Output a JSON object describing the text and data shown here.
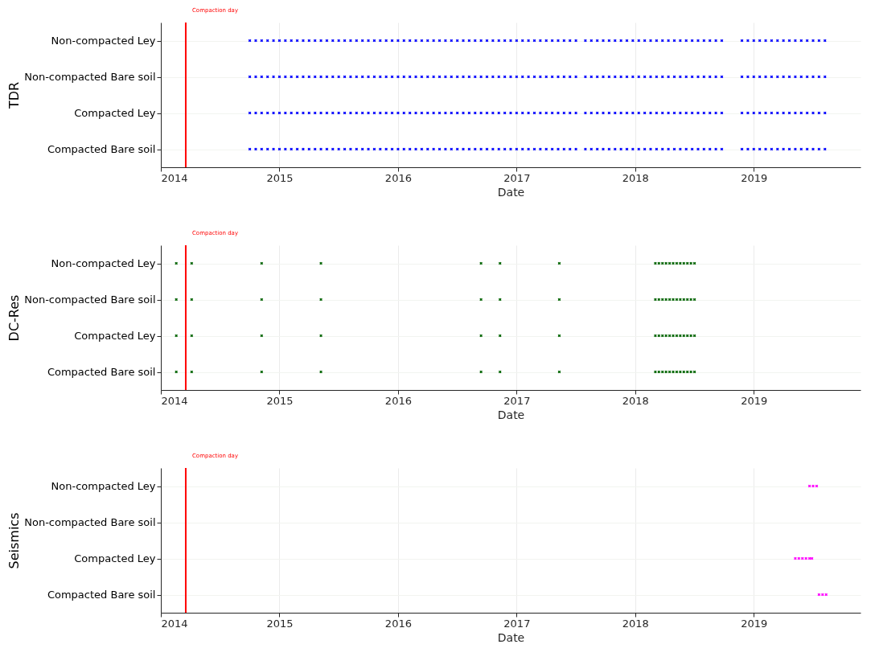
{
  "chart_data": [
    {
      "type": "scatter",
      "orientation": "horizontal",
      "xlabel": "Date",
      "ylabel": "TDR",
      "marker": "cross",
      "grid": true,
      "xlim": [
        2014,
        2019.9
      ],
      "xticks": [
        2014,
        2015,
        2016,
        2017,
        2018,
        2019
      ],
      "categories": [
        "Non-compacted Ley",
        "Non-compacted Bare soil",
        "Compacted Ley",
        "Compacted Bare soil"
      ],
      "ref_lines": [
        {
          "axis": "x",
          "value": 2014.21,
          "label": "Compaction day",
          "color": "#ff0000"
        }
      ],
      "series": [
        {
          "color": "#0000ff",
          "values": [
            2014.75,
            2014.75,
            2014.75,
            2014.75
          ]
        },
        {
          "color": "#0000ff",
          "values": [
            2014.8,
            2014.8,
            2014.8,
            2014.8
          ]
        },
        {
          "color": "#0000ff",
          "values": [
            2014.85,
            2014.85,
            2014.85,
            2014.85
          ]
        },
        {
          "color": "#0000ff",
          "values": [
            2014.9,
            2014.9,
            2014.9,
            2014.9
          ]
        },
        {
          "color": "#0000ff",
          "values": [
            2014.95,
            2014.95,
            2014.95,
            2014.95
          ]
        },
        {
          "color": "#0000ff",
          "values": [
            2015.0,
            2015.0,
            2015.0,
            2015.0
          ]
        },
        {
          "color": "#0000ff",
          "values": [
            2015.05,
            2015.05,
            2015.05,
            2015.05
          ]
        },
        {
          "color": "#0000ff",
          "values": [
            2015.1,
            2015.1,
            2015.1,
            2015.1
          ]
        },
        {
          "color": "#0000ff",
          "values": [
            2015.15,
            2015.15,
            2015.15,
            2015.15
          ]
        },
        {
          "color": "#0000ff",
          "values": [
            2015.2,
            2015.2,
            2015.2,
            2015.2
          ]
        },
        {
          "color": "#0000ff",
          "values": [
            2015.25,
            2015.25,
            2015.25,
            2015.25
          ]
        },
        {
          "color": "#0000ff",
          "values": [
            2015.3,
            2015.3,
            2015.3,
            2015.3
          ]
        },
        {
          "color": "#0000ff",
          "values": [
            2015.35,
            2015.35,
            2015.35,
            2015.35
          ]
        },
        {
          "color": "#0000ff",
          "values": [
            2015.4,
            2015.4,
            2015.4,
            2015.4
          ]
        },
        {
          "color": "#0000ff",
          "values": [
            2015.45,
            2015.45,
            2015.45,
            2015.45
          ]
        },
        {
          "color": "#0000ff",
          "values": [
            2015.5,
            2015.5,
            2015.5,
            2015.5
          ]
        },
        {
          "color": "#0000ff",
          "values": [
            2015.55,
            2015.55,
            2015.55,
            2015.55
          ]
        },
        {
          "color": "#0000ff",
          "values": [
            2015.6,
            2015.6,
            2015.6,
            2015.6
          ]
        },
        {
          "color": "#0000ff",
          "values": [
            2015.65,
            2015.65,
            2015.65,
            2015.65
          ]
        },
        {
          "color": "#0000ff",
          "values": [
            2015.7,
            2015.7,
            2015.7,
            2015.7
          ]
        },
        {
          "color": "#0000ff",
          "values": [
            2015.75,
            2015.75,
            2015.75,
            2015.75
          ]
        },
        {
          "color": "#0000ff",
          "values": [
            2015.8,
            2015.8,
            2015.8,
            2015.8
          ]
        },
        {
          "color": "#0000ff",
          "values": [
            2015.85,
            2015.85,
            2015.85,
            2015.85
          ]
        },
        {
          "color": "#0000ff",
          "values": [
            2015.9,
            2015.9,
            2015.9,
            2015.9
          ]
        },
        {
          "color": "#0000ff",
          "values": [
            2015.95,
            2015.95,
            2015.95,
            2015.95
          ]
        },
        {
          "color": "#0000ff",
          "values": [
            2016.0,
            2016.0,
            2016.0,
            2016.0
          ]
        },
        {
          "color": "#0000ff",
          "values": [
            2016.05,
            2016.05,
            2016.05,
            2016.05
          ]
        },
        {
          "color": "#0000ff",
          "values": [
            2016.1,
            2016.1,
            2016.1,
            2016.1
          ]
        },
        {
          "color": "#0000ff",
          "values": [
            2016.15,
            2016.15,
            2016.15,
            2016.15
          ]
        },
        {
          "color": "#0000ff",
          "values": [
            2016.2,
            2016.2,
            2016.2,
            2016.2
          ]
        },
        {
          "color": "#0000ff",
          "values": [
            2016.25,
            2016.25,
            2016.25,
            2016.25
          ]
        },
        {
          "color": "#0000ff",
          "values": [
            2016.3,
            2016.3,
            2016.3,
            2016.3
          ]
        },
        {
          "color": "#0000ff",
          "values": [
            2016.35,
            2016.35,
            2016.35,
            2016.35
          ]
        },
        {
          "color": "#0000ff",
          "values": [
            2016.4,
            2016.4,
            2016.4,
            2016.4
          ]
        },
        {
          "color": "#0000ff",
          "values": [
            2016.45,
            2016.45,
            2016.45,
            2016.45
          ]
        },
        {
          "color": "#0000ff",
          "values": [
            2016.5,
            2016.5,
            2016.5,
            2016.5
          ]
        },
        {
          "color": "#0000ff",
          "values": [
            2016.55,
            2016.55,
            2016.55,
            2016.55
          ]
        },
        {
          "color": "#0000ff",
          "values": [
            2016.6,
            2016.6,
            2016.6,
            2016.6
          ]
        },
        {
          "color": "#0000ff",
          "values": [
            2016.65,
            2016.65,
            2016.65,
            2016.65
          ]
        },
        {
          "color": "#0000ff",
          "values": [
            2016.7,
            2016.7,
            2016.7,
            2016.7
          ]
        },
        {
          "color": "#0000ff",
          "values": [
            2016.75,
            2016.75,
            2016.75,
            2016.75
          ]
        },
        {
          "color": "#0000ff",
          "values": [
            2016.8,
            2016.8,
            2016.8,
            2016.8
          ]
        },
        {
          "color": "#0000ff",
          "values": [
            2016.85,
            2016.85,
            2016.85,
            2016.85
          ]
        },
        {
          "color": "#0000ff",
          "values": [
            2016.9,
            2016.9,
            2016.9,
            2016.9
          ]
        },
        {
          "color": "#0000ff",
          "values": [
            2016.95,
            2016.95,
            2016.95,
            2016.95
          ]
        },
        {
          "color": "#0000ff",
          "values": [
            2017.0,
            2017.0,
            2017.0,
            2017.0
          ]
        },
        {
          "color": "#0000ff",
          "values": [
            2017.05,
            2017.05,
            2017.05,
            2017.05
          ]
        },
        {
          "color": "#0000ff",
          "values": [
            2017.1,
            2017.1,
            2017.1,
            2017.1
          ]
        },
        {
          "color": "#0000ff",
          "values": [
            2017.15,
            2017.15,
            2017.15,
            2017.15
          ]
        },
        {
          "color": "#0000ff",
          "values": [
            2017.2,
            2017.2,
            2017.2,
            2017.2
          ]
        },
        {
          "color": "#0000ff",
          "values": [
            2017.25,
            2017.25,
            2017.25,
            2017.25
          ]
        },
        {
          "color": "#0000ff",
          "values": [
            2017.3,
            2017.3,
            2017.3,
            2017.3
          ]
        },
        {
          "color": "#0000ff",
          "values": [
            2017.35,
            2017.35,
            2017.35,
            2017.35
          ]
        },
        {
          "color": "#0000ff",
          "values": [
            2017.4,
            2017.4,
            2017.4,
            2017.4
          ]
        },
        {
          "color": "#0000ff",
          "values": [
            2017.45,
            2017.45,
            2017.45,
            2017.45
          ]
        },
        {
          "color": "#0000ff",
          "values": [
            2017.5,
            2017.5,
            2017.5,
            2017.5
          ]
        },
        {
          "color": "#0000ff",
          "values": [
            2017.58,
            2017.58,
            2017.58,
            2017.58
          ]
        },
        {
          "color": "#0000ff",
          "values": [
            2017.63,
            2017.63,
            2017.63,
            2017.63
          ]
        },
        {
          "color": "#0000ff",
          "values": [
            2017.68,
            2017.68,
            2017.68,
            2017.68
          ]
        },
        {
          "color": "#0000ff",
          "values": [
            2017.73,
            2017.73,
            2017.73,
            2017.73
          ]
        },
        {
          "color": "#0000ff",
          "values": [
            2017.78,
            2017.78,
            2017.78,
            2017.78
          ]
        },
        {
          "color": "#0000ff",
          "values": [
            2017.83,
            2017.83,
            2017.83,
            2017.83
          ]
        },
        {
          "color": "#0000ff",
          "values": [
            2017.88,
            2017.88,
            2017.88,
            2017.88
          ]
        },
        {
          "color": "#0000ff",
          "values": [
            2017.93,
            2017.93,
            2017.93,
            2017.93
          ]
        },
        {
          "color": "#0000ff",
          "values": [
            2017.98,
            2017.98,
            2017.98,
            2017.98
          ]
        },
        {
          "color": "#0000ff",
          "values": [
            2018.03,
            2018.03,
            2018.03,
            2018.03
          ]
        },
        {
          "color": "#0000ff",
          "values": [
            2018.08,
            2018.08,
            2018.08,
            2018.08
          ]
        },
        {
          "color": "#0000ff",
          "values": [
            2018.13,
            2018.13,
            2018.13,
            2018.13
          ]
        },
        {
          "color": "#0000ff",
          "values": [
            2018.18,
            2018.18,
            2018.18,
            2018.18
          ]
        },
        {
          "color": "#0000ff",
          "values": [
            2018.23,
            2018.23,
            2018.23,
            2018.23
          ]
        },
        {
          "color": "#0000ff",
          "values": [
            2018.28,
            2018.28,
            2018.28,
            2018.28
          ]
        },
        {
          "color": "#0000ff",
          "values": [
            2018.33,
            2018.33,
            2018.33,
            2018.33
          ]
        },
        {
          "color": "#0000ff",
          "values": [
            2018.38,
            2018.38,
            2018.38,
            2018.38
          ]
        },
        {
          "color": "#0000ff",
          "values": [
            2018.43,
            2018.43,
            2018.43,
            2018.43
          ]
        },
        {
          "color": "#0000ff",
          "values": [
            2018.48,
            2018.48,
            2018.48,
            2018.48
          ]
        },
        {
          "color": "#0000ff",
          "values": [
            2018.53,
            2018.53,
            2018.53,
            2018.53
          ]
        },
        {
          "color": "#0000ff",
          "values": [
            2018.58,
            2018.58,
            2018.58,
            2018.58
          ]
        },
        {
          "color": "#0000ff",
          "values": [
            2018.63,
            2018.63,
            2018.63,
            2018.63
          ]
        },
        {
          "color": "#0000ff",
          "values": [
            2018.68,
            2018.68,
            2018.68,
            2018.68
          ]
        },
        {
          "color": "#0000ff",
          "values": [
            2018.73,
            2018.73,
            2018.73,
            2018.73
          ]
        },
        {
          "color": "#0000ff",
          "values": [
            2018.9,
            2018.9,
            2018.9,
            2018.9
          ]
        },
        {
          "color": "#0000ff",
          "values": [
            2018.95,
            2018.95,
            2018.95,
            2018.95
          ]
        },
        {
          "color": "#0000ff",
          "values": [
            2019.0,
            2019.0,
            2019.0,
            2019.0
          ]
        },
        {
          "color": "#0000ff",
          "values": [
            2019.05,
            2019.05,
            2019.05,
            2019.05
          ]
        },
        {
          "color": "#0000ff",
          "values": [
            2019.1,
            2019.1,
            2019.1,
            2019.1
          ]
        },
        {
          "color": "#0000ff",
          "values": [
            2019.15,
            2019.15,
            2019.15,
            2019.15
          ]
        },
        {
          "color": "#0000ff",
          "values": [
            2019.2,
            2019.2,
            2019.2,
            2019.2
          ]
        },
        {
          "color": "#0000ff",
          "values": [
            2019.25,
            2019.25,
            2019.25,
            2019.25
          ]
        },
        {
          "color": "#0000ff",
          "values": [
            2019.3,
            2019.3,
            2019.3,
            2019.3
          ]
        },
        {
          "color": "#0000ff",
          "values": [
            2019.35,
            2019.35,
            2019.35,
            2019.35
          ]
        },
        {
          "color": "#0000ff",
          "values": [
            2019.4,
            2019.4,
            2019.4,
            2019.4
          ]
        },
        {
          "color": "#0000ff",
          "values": [
            2019.45,
            2019.45,
            2019.45,
            2019.45
          ]
        },
        {
          "color": "#0000ff",
          "values": [
            2019.5,
            2019.5,
            2019.5,
            2019.5
          ]
        },
        {
          "color": "#0000ff",
          "values": [
            2019.55,
            2019.55,
            2019.55,
            2019.55
          ]
        },
        {
          "color": "#0000ff",
          "values": [
            2019.6,
            2019.6,
            2019.6,
            2019.6
          ]
        }
      ]
    },
    {
      "type": "scatter",
      "orientation": "horizontal",
      "xlabel": "Date",
      "ylabel": "DC-Res",
      "marker": "cross",
      "grid": true,
      "xlim": [
        2014,
        2019.9
      ],
      "xticks": [
        2014,
        2015,
        2016,
        2017,
        2018,
        2019
      ],
      "categories": [
        "Non-compacted Ley",
        "Non-compacted Bare soil",
        "Compacted Ley",
        "Compacted Bare soil"
      ],
      "ref_lines": [
        {
          "axis": "x",
          "value": 2014.21,
          "label": "Compaction day",
          "color": "#ff0000"
        }
      ],
      "series": [
        {
          "color": "#006400",
          "values": [
            2014.13,
            2014.13,
            2014.13,
            2014.13
          ]
        },
        {
          "color": "#006400",
          "values": [
            2014.26,
            2014.26,
            2014.26,
            2014.26
          ]
        },
        {
          "color": "#006400",
          "values": [
            2014.85,
            2014.85,
            2014.85,
            2014.85
          ]
        },
        {
          "color": "#006400",
          "values": [
            2015.35,
            2015.35,
            2015.35,
            2015.35
          ]
        },
        {
          "color": "#006400",
          "values": [
            2016.7,
            2016.7,
            2016.7,
            2016.7
          ]
        },
        {
          "color": "#006400",
          "values": [
            2016.86,
            2016.86,
            2016.86,
            2016.86
          ]
        },
        {
          "color": "#006400",
          "values": [
            2017.36,
            2017.36,
            2017.36,
            2017.36
          ]
        },
        {
          "color": "#006400",
          "values": [
            2018.17,
            2018.17,
            2018.17,
            2018.17
          ]
        },
        {
          "color": "#006400",
          "values": [
            2018.2,
            2018.2,
            2018.2,
            2018.2
          ]
        },
        {
          "color": "#006400",
          "values": [
            2018.23,
            2018.23,
            2018.23,
            2018.23
          ]
        },
        {
          "color": "#006400",
          "values": [
            2018.26,
            2018.26,
            2018.26,
            2018.26
          ]
        },
        {
          "color": "#006400",
          "values": [
            2018.29,
            2018.29,
            2018.29,
            2018.29
          ]
        },
        {
          "color": "#006400",
          "values": [
            2018.32,
            2018.32,
            2018.32,
            2018.32
          ]
        },
        {
          "color": "#006400",
          "values": [
            2018.35,
            2018.35,
            2018.35,
            2018.35
          ]
        },
        {
          "color": "#006400",
          "values": [
            2018.38,
            2018.38,
            2018.38,
            2018.38
          ]
        },
        {
          "color": "#006400",
          "values": [
            2018.41,
            2018.41,
            2018.41,
            2018.41
          ]
        },
        {
          "color": "#006400",
          "values": [
            2018.44,
            2018.44,
            2018.44,
            2018.44
          ]
        },
        {
          "color": "#006400",
          "values": [
            2018.47,
            2018.47,
            2018.47,
            2018.47
          ]
        },
        {
          "color": "#006400",
          "values": [
            2018.5,
            2018.5,
            2018.5,
            2018.5
          ]
        }
      ]
    },
    {
      "type": "scatter",
      "orientation": "horizontal",
      "xlabel": "Date",
      "ylabel": "Seismics",
      "marker": "cross",
      "grid": true,
      "xlim": [
        2014,
        2019.9
      ],
      "xticks": [
        2014,
        2015,
        2016,
        2017,
        2018,
        2019
      ],
      "categories": [
        "Non-compacted Ley",
        "Non-compacted Bare soil",
        "Compacted Ley",
        "Compacted Bare soil"
      ],
      "ref_lines": [
        {
          "axis": "x",
          "value": 2014.21,
          "label": "Compaction day",
          "color": "#ff0000"
        }
      ],
      "series": [
        {
          "color": "#ff00ff",
          "values": [
            2019.47,
            null,
            2019.35,
            2019.55
          ]
        },
        {
          "color": "#ff00ff",
          "values": [
            2019.5,
            null,
            2019.38,
            2019.58
          ]
        },
        {
          "color": "#ff00ff",
          "values": [
            2019.53,
            null,
            2019.41,
            2019.61
          ]
        },
        {
          "color": "#ff00ff",
          "values": [
            null,
            null,
            2019.44,
            null
          ]
        },
        {
          "color": "#ff00ff",
          "values": [
            null,
            null,
            2019.47,
            null
          ]
        },
        {
          "color": "#ff00ff",
          "values": [
            null,
            null,
            2019.49,
            null
          ]
        }
      ]
    }
  ]
}
